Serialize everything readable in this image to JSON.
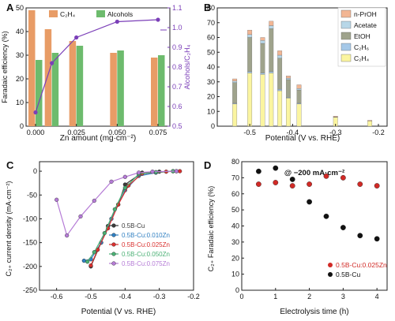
{
  "chart_data": [
    {
      "panel": "A",
      "type": "bar",
      "categories": [
        "0.000",
        "0.010",
        "0.025",
        "0.050",
        "0.075"
      ],
      "x_values": [
        0.0,
        0.01,
        0.025,
        0.05,
        0.075
      ],
      "series": [
        {
          "name": "C₂H₄",
          "color": "#e89c66",
          "values": [
            49,
            41,
            36,
            31,
            29
          ]
        },
        {
          "name": "Alcohols",
          "color": "#6dbb6d",
          "values": [
            28,
            31,
            34,
            32,
            30
          ]
        }
      ],
      "line": {
        "color": "#7b3fb8",
        "values": [
          0.57,
          0.82,
          0.95,
          1.03,
          1.04
        ]
      },
      "xlabel": "Zn amount (mg·cm⁻²)",
      "ylabel": "Faradaic efficiency (%)",
      "y2label": "Alcohols/C₂H₄",
      "ylim": [
        0,
        50
      ],
      "yticks": [
        0,
        10,
        20,
        30,
        40,
        50
      ],
      "y2lim": [
        0.5,
        1.1
      ],
      "y2ticks": [
        "0.5",
        "0.6",
        "0.7",
        "0.8",
        "0.9",
        "1.0",
        "1.1"
      ],
      "xticks": [
        "0.000",
        "0.025",
        "0.050",
        "0.075"
      ]
    },
    {
      "panel": "B",
      "type": "bar",
      "stacked": true,
      "layers": [
        "C₂H₄",
        "C₂H₆",
        "EtOH",
        "Acetate",
        "n-PrOH"
      ],
      "legend": [
        "n-PrOH",
        "Acetate",
        "EtOH",
        "C₂H₆",
        "C₂H₄"
      ],
      "colors": {
        "n-PrOH": "#f2b694",
        "Acetate": "#b8d7e8",
        "EtOH": "#9fa38c",
        "C₂H₆": "#a5c8e8",
        "C₂H₄": "#fbf5a0"
      },
      "potentials": [
        -0.535,
        -0.5,
        -0.47,
        -0.45,
        -0.43,
        -0.41,
        -0.385,
        -0.3,
        -0.22
      ],
      "stacks": [
        [
          15,
          0.5,
          14,
          1,
          1.5
        ],
        [
          36,
          1,
          23,
          2,
          3
        ],
        [
          35,
          1,
          20,
          2,
          2
        ],
        [
          36,
          1,
          29,
          2,
          3
        ],
        [
          24,
          1,
          21,
          2,
          3
        ],
        [
          19,
          0.5,
          12,
          1,
          1.5
        ],
        [
          15,
          0.5,
          9,
          1,
          2.5
        ],
        [
          6,
          0,
          0.3,
          0,
          0.5
        ],
        [
          3.5,
          0,
          0,
          0,
          0.5
        ]
      ],
      "xlabel": "Potential (V vs. RHE)",
      "ylim": [
        0,
        80
      ],
      "yticks": [
        0,
        10,
        20,
        30,
        40,
        50,
        60,
        70,
        80
      ],
      "xticks": [
        "-0.5",
        "-0.4",
        "-0.3",
        "-0.2"
      ]
    },
    {
      "panel": "C",
      "type": "line",
      "xlabel": "Potential (V vs. RHE)",
      "ylabel": "C₂₊ current density (mA·cm⁻²)",
      "xlim": [
        -0.65,
        -0.2
      ],
      "ylim": [
        -250,
        20
      ],
      "xticks": [
        "-0.6",
        "-0.5",
        "-0.4",
        "-0.3",
        "-0.2"
      ],
      "yticks": [
        "0",
        "-50",
        "-100",
        "-150",
        "-200",
        "-250"
      ],
      "series": [
        {
          "name": "0.5B-Cu",
          "color": "#3a3a3a",
          "x": [
            -0.25,
            -0.3,
            -0.35,
            -0.4,
            -0.42,
            -0.45,
            -0.47,
            -0.5
          ],
          "y": [
            0,
            -1,
            -3,
            -28,
            -70,
            -115,
            -150,
            -200
          ]
        },
        {
          "name": "0.5B-Cu:0.010Zn",
          "color": "#2f7fc1",
          "x": [
            -0.26,
            -0.31,
            -0.36,
            -0.4,
            -0.44,
            -0.47,
            -0.5,
            -0.52
          ],
          "y": [
            0,
            -3,
            -10,
            -40,
            -100,
            -150,
            -185,
            -188
          ]
        },
        {
          "name": "0.5B-Cu:0.025Zn",
          "color": "#d9302e",
          "x": [
            -0.24,
            -0.28,
            -0.35,
            -0.39,
            -0.42,
            -0.45,
            -0.48,
            -0.5
          ],
          "y": [
            0,
            -1,
            -5,
            -30,
            -70,
            -120,
            -165,
            -198
          ]
        },
        {
          "name": "0.5B-Cu:0.050Zn",
          "color": "#4ab074",
          "x": [
            -0.26,
            -0.31,
            -0.36,
            -0.4,
            -0.43,
            -0.46,
            -0.49,
            -0.51
          ],
          "y": [
            0,
            -2,
            -6,
            -35,
            -80,
            -130,
            -170,
            -190
          ]
        },
        {
          "name": "0.5B-Cu:0.075Zn",
          "color": "#b57bd6",
          "x": [
            -0.25,
            -0.32,
            -0.36,
            -0.4,
            -0.44,
            -0.49,
            -0.53,
            -0.57,
            -0.6
          ],
          "y": [
            0,
            -1,
            -3,
            -12,
            -22,
            -62,
            -95,
            -135,
            -60
          ]
        }
      ]
    },
    {
      "panel": "D",
      "type": "scatter",
      "annotation": "@ −200 mA·cm⁻²",
      "xlabel": "Electrolysis time (h)",
      "ylabel": "C₂₊ Faradaic efficiency (%)",
      "xlim": [
        0,
        4.3
      ],
      "ylim": [
        0,
        80
      ],
      "xticks": [
        "0",
        "1",
        "2",
        "3",
        "4"
      ],
      "yticks": [
        "0",
        "10",
        "20",
        "30",
        "40",
        "50",
        "60",
        "70",
        "80"
      ],
      "series": [
        {
          "name": "0.5B-Cu:0.025Zn",
          "color": "#d12a26",
          "x": [
            0.5,
            1.0,
            1.5,
            2.0,
            2.5,
            3.0,
            3.5,
            4.0
          ],
          "y": [
            66,
            67,
            65,
            66,
            71,
            70,
            66,
            65
          ]
        },
        {
          "name": "0.5B-Cu",
          "color": "#111111",
          "x": [
            0.5,
            1.0,
            1.5,
            2.0,
            2.5,
            3.0,
            3.5,
            4.0
          ],
          "y": [
            74,
            76,
            69,
            55,
            46,
            39,
            34,
            32
          ]
        }
      ]
    }
  ]
}
